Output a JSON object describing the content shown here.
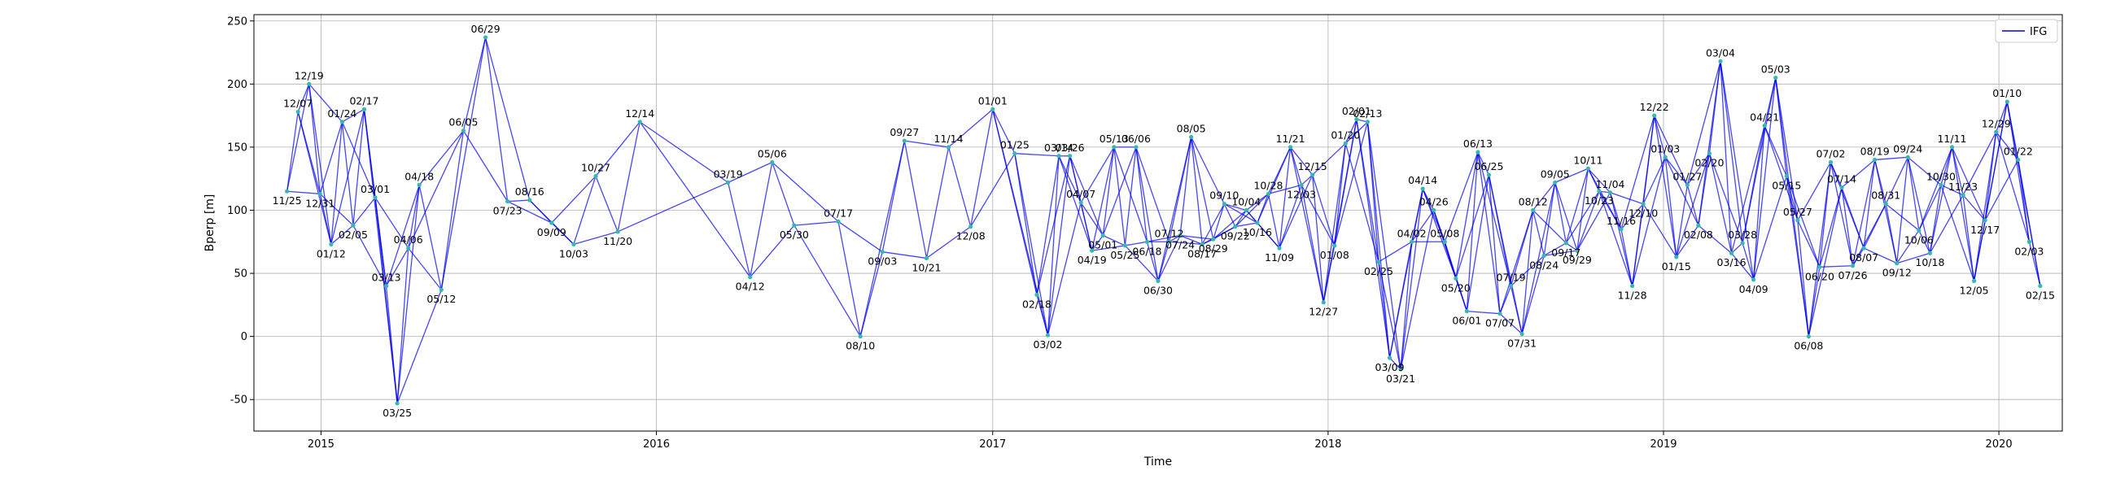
{
  "chart_data": {
    "type": "scatter",
    "subtype": "interferogram baseline network",
    "xlabel": "Time",
    "ylabel": "Bperp [m]",
    "xlim": [
      "2014-10-20",
      "2020-03-10"
    ],
    "ylim": [
      -75,
      255
    ],
    "x_ticks": [
      "2015",
      "2016",
      "2017",
      "2018",
      "2019",
      "2020"
    ],
    "y_ticks": [
      -50,
      0,
      50,
      100,
      150,
      200,
      250
    ],
    "grid": true,
    "legend": {
      "placement": "top-right",
      "entries": [
        "IFG"
      ]
    },
    "colors": {
      "edge": "#0000ee",
      "node": "#33bbaa",
      "grid": "#b0b0b0"
    },
    "acquisitions": [
      {
        "date": "2014-11-25",
        "label": "11/25",
        "bperp": 115
      },
      {
        "date": "2014-12-07",
        "label": "12/07",
        "bperp": 178
      },
      {
        "date": "2014-12-19",
        "label": "12/19",
        "bperp": 200
      },
      {
        "date": "2014-12-31",
        "label": "12/31",
        "bperp": 113
      },
      {
        "date": "2015-01-12",
        "label": "01/12",
        "bperp": 73
      },
      {
        "date": "2015-01-24",
        "label": "01/24",
        "bperp": 170
      },
      {
        "date": "2015-02-05",
        "label": "02/05",
        "bperp": 88
      },
      {
        "date": "2015-02-17",
        "label": "02/17",
        "bperp": 180
      },
      {
        "date": "2015-03-01",
        "label": "03/01",
        "bperp": 110
      },
      {
        "date": "2015-03-13",
        "label": "03/13",
        "bperp": 40
      },
      {
        "date": "2015-03-25",
        "label": "03/25",
        "bperp": -53
      },
      {
        "date": "2015-04-06",
        "label": "04/06",
        "bperp": 70
      },
      {
        "date": "2015-04-18",
        "label": "04/18",
        "bperp": 120
      },
      {
        "date": "2015-05-12",
        "label": "05/12",
        "bperp": 37
      },
      {
        "date": "2015-06-05",
        "label": "06/05",
        "bperp": 163
      },
      {
        "date": "2015-06-29",
        "label": "06/29",
        "bperp": 237
      },
      {
        "date": "2015-07-23",
        "label": "07/23",
        "bperp": 107
      },
      {
        "date": "2015-08-16",
        "label": "08/16",
        "bperp": 108
      },
      {
        "date": "2015-09-09",
        "label": "09/09",
        "bperp": 90
      },
      {
        "date": "2015-10-03",
        "label": "10/03",
        "bperp": 73
      },
      {
        "date": "2015-10-27",
        "label": "10/27",
        "bperp": 127
      },
      {
        "date": "2015-11-20",
        "label": "11/20",
        "bperp": 83
      },
      {
        "date": "2015-12-14",
        "label": "12/14",
        "bperp": 170
      },
      {
        "date": "2016-03-19",
        "label": "03/19",
        "bperp": 122
      },
      {
        "date": "2016-04-12",
        "label": "04/12",
        "bperp": 47
      },
      {
        "date": "2016-05-06",
        "label": "05/06",
        "bperp": 138
      },
      {
        "date": "2016-05-30",
        "label": "05/30",
        "bperp": 88
      },
      {
        "date": "2016-07-17",
        "label": "07/17",
        "bperp": 91
      },
      {
        "date": "2016-08-10",
        "label": "08/10",
        "bperp": 0
      },
      {
        "date": "2016-09-03",
        "label": "09/03",
        "bperp": 67
      },
      {
        "date": "2016-09-27",
        "label": "09/27",
        "bperp": 155
      },
      {
        "date": "2016-10-21",
        "label": "10/21",
        "bperp": 62
      },
      {
        "date": "2016-11-14",
        "label": "11/14",
        "bperp": 150
      },
      {
        "date": "2016-12-08",
        "label": "12/08",
        "bperp": 87
      },
      {
        "date": "2017-01-01",
        "label": "01/01",
        "bperp": 180
      },
      {
        "date": "2017-01-25",
        "label": "01/25",
        "bperp": 145
      },
      {
        "date": "2017-02-18",
        "label": "02/18",
        "bperp": 33
      },
      {
        "date": "2017-03-02",
        "label": "03/02",
        "bperp": 1
      },
      {
        "date": "2017-03-14",
        "label": "03/14",
        "bperp": 143
      },
      {
        "date": "2017-03-26",
        "label": "03/26",
        "bperp": 143
      },
      {
        "date": "2017-04-07",
        "label": "04/07",
        "bperp": 106
      },
      {
        "date": "2017-04-19",
        "label": "04/19",
        "bperp": 68
      },
      {
        "date": "2017-05-01",
        "label": "05/01",
        "bperp": 80
      },
      {
        "date": "2017-05-13",
        "label": "05/13",
        "bperp": 150
      },
      {
        "date": "2017-05-25",
        "label": "05/25",
        "bperp": 72
      },
      {
        "date": "2017-06-06",
        "label": "06/06",
        "bperp": 150
      },
      {
        "date": "2017-06-18",
        "label": "06/18",
        "bperp": 75
      },
      {
        "date": "2017-06-30",
        "label": "06/30",
        "bperp": 44
      },
      {
        "date": "2017-07-12",
        "label": "07/12",
        "bperp": 75
      },
      {
        "date": "2017-07-24",
        "label": "07/24",
        "bperp": 80
      },
      {
        "date": "2017-08-05",
        "label": "08/05",
        "bperp": 158
      },
      {
        "date": "2017-08-17",
        "label": "08/17",
        "bperp": 73
      },
      {
        "date": "2017-08-29",
        "label": "08/29",
        "bperp": 77
      },
      {
        "date": "2017-09-10",
        "label": "09/10",
        "bperp": 105
      },
      {
        "date": "2017-09-22",
        "label": "09/22",
        "bperp": 87
      },
      {
        "date": "2017-10-04",
        "label": "10/04",
        "bperp": 100
      },
      {
        "date": "2017-10-16",
        "label": "10/16",
        "bperp": 90
      },
      {
        "date": "2017-10-28",
        "label": "10/28",
        "bperp": 113
      },
      {
        "date": "2017-11-09",
        "label": "11/09",
        "bperp": 70
      },
      {
        "date": "2017-11-21",
        "label": "11/21",
        "bperp": 150
      },
      {
        "date": "2017-12-03",
        "label": "12/03",
        "bperp": 120
      },
      {
        "date": "2017-12-15",
        "label": "12/15",
        "bperp": 128
      },
      {
        "date": "2017-12-27",
        "label": "12/27",
        "bperp": 27
      },
      {
        "date": "2018-01-08",
        "label": "01/08",
        "bperp": 72
      },
      {
        "date": "2018-01-20",
        "label": "01/20",
        "bperp": 153
      },
      {
        "date": "2018-02-01",
        "label": "02/01",
        "bperp": 172
      },
      {
        "date": "2018-02-13",
        "label": "02/13",
        "bperp": 170
      },
      {
        "date": "2018-02-25",
        "label": "02/25",
        "bperp": 59
      },
      {
        "date": "2018-03-09",
        "label": "03/09",
        "bperp": -17
      },
      {
        "date": "2018-03-21",
        "label": "03/21",
        "bperp": -26
      },
      {
        "date": "2018-04-02",
        "label": "04/02",
        "bperp": 75
      },
      {
        "date": "2018-04-14",
        "label": "04/14",
        "bperp": 117
      },
      {
        "date": "2018-04-26",
        "label": "04/26",
        "bperp": 100
      },
      {
        "date": "2018-05-08",
        "label": "05/08",
        "bperp": 75
      },
      {
        "date": "2018-05-20",
        "label": "05/20",
        "bperp": 46
      },
      {
        "date": "2018-06-01",
        "label": "06/01",
        "bperp": 20
      },
      {
        "date": "2018-06-13",
        "label": "06/13",
        "bperp": 146
      },
      {
        "date": "2018-06-25",
        "label": "06/25",
        "bperp": 128
      },
      {
        "date": "2018-07-07",
        "label": "07/07",
        "bperp": 18
      },
      {
        "date": "2018-07-19",
        "label": "07/19",
        "bperp": 40
      },
      {
        "date": "2018-07-31",
        "label": "07/31",
        "bperp": 2
      },
      {
        "date": "2018-08-12",
        "label": "08/12",
        "bperp": 100
      },
      {
        "date": "2018-08-24",
        "label": "08/24",
        "bperp": 64
      },
      {
        "date": "2018-09-05",
        "label": "09/05",
        "bperp": 122
      },
      {
        "date": "2018-09-17",
        "label": "09/17",
        "bperp": 74
      },
      {
        "date": "2018-09-29",
        "label": "09/29",
        "bperp": 68
      },
      {
        "date": "2018-10-11",
        "label": "10/11",
        "bperp": 133
      },
      {
        "date": "2018-10-23",
        "label": "10/23",
        "bperp": 115
      },
      {
        "date": "2018-11-04",
        "label": "11/04",
        "bperp": 114
      },
      {
        "date": "2018-11-16",
        "label": "11/16",
        "bperp": 85
      },
      {
        "date": "2018-11-28",
        "label": "11/28",
        "bperp": 40
      },
      {
        "date": "2018-12-10",
        "label": "12/10",
        "bperp": 105
      },
      {
        "date": "2018-12-22",
        "label": "12/22",
        "bperp": 175
      },
      {
        "date": "2019-01-03",
        "label": "01/03",
        "bperp": 142
      },
      {
        "date": "2019-01-15",
        "label": "01/15",
        "bperp": 63
      },
      {
        "date": "2019-01-27",
        "label": "01/27",
        "bperp": 120
      },
      {
        "date": "2019-02-08",
        "label": "02/08",
        "bperp": 88
      },
      {
        "date": "2019-02-20",
        "label": "02/20",
        "bperp": 145
      },
      {
        "date": "2019-03-04",
        "label": "03/04",
        "bperp": 218
      },
      {
        "date": "2019-03-16",
        "label": "03/16",
        "bperp": 66
      },
      {
        "date": "2019-03-28",
        "label": "03/28",
        "bperp": 74
      },
      {
        "date": "2019-04-09",
        "label": "04/09",
        "bperp": 45
      },
      {
        "date": "2019-04-21",
        "label": "04/21",
        "bperp": 167
      },
      {
        "date": "2019-05-03",
        "label": "05/03",
        "bperp": 205
      },
      {
        "date": "2019-05-15",
        "label": "05/15",
        "bperp": 127
      },
      {
        "date": "2019-05-27",
        "label": "05/27",
        "bperp": 92
      },
      {
        "date": "2019-06-08",
        "label": "06/08",
        "bperp": 0
      },
      {
        "date": "2019-06-20",
        "label": "06/20",
        "bperp": 55
      },
      {
        "date": "2019-07-02",
        "label": "07/02",
        "bperp": 138
      },
      {
        "date": "2019-07-14",
        "label": "07/14",
        "bperp": 118
      },
      {
        "date": "2019-07-26",
        "label": "07/26",
        "bperp": 56
      },
      {
        "date": "2019-08-07",
        "label": "08/07",
        "bperp": 70
      },
      {
        "date": "2019-08-19",
        "label": "08/19",
        "bperp": 140
      },
      {
        "date": "2019-08-31",
        "label": "08/31",
        "bperp": 105
      },
      {
        "date": "2019-09-12",
        "label": "09/12",
        "bperp": 58
      },
      {
        "date": "2019-09-24",
        "label": "09/24",
        "bperp": 142
      },
      {
        "date": "2019-10-06",
        "label": "10/06",
        "bperp": 84
      },
      {
        "date": "2019-10-18",
        "label": "10/18",
        "bperp": 66
      },
      {
        "date": "2019-10-30",
        "label": "10/30",
        "bperp": 120
      },
      {
        "date": "2019-11-11",
        "label": "11/11",
        "bperp": 150
      },
      {
        "date": "2019-11-23",
        "label": "11/23",
        "bperp": 112
      },
      {
        "date": "2019-12-05",
        "label": "12/05",
        "bperp": 44
      },
      {
        "date": "2019-12-17",
        "label": "12/17",
        "bperp": 92
      },
      {
        "date": "2019-12-29",
        "label": "12/29",
        "bperp": 162
      },
      {
        "date": "2020-01-10",
        "label": "01/10",
        "bperp": 186
      },
      {
        "date": "2020-01-22",
        "label": "01/22",
        "bperp": 140
      },
      {
        "date": "2020-02-03",
        "label": "02/03",
        "bperp": 75
      },
      {
        "date": "2020-02-15",
        "label": "02/15",
        "bperp": 40
      }
    ]
  }
}
